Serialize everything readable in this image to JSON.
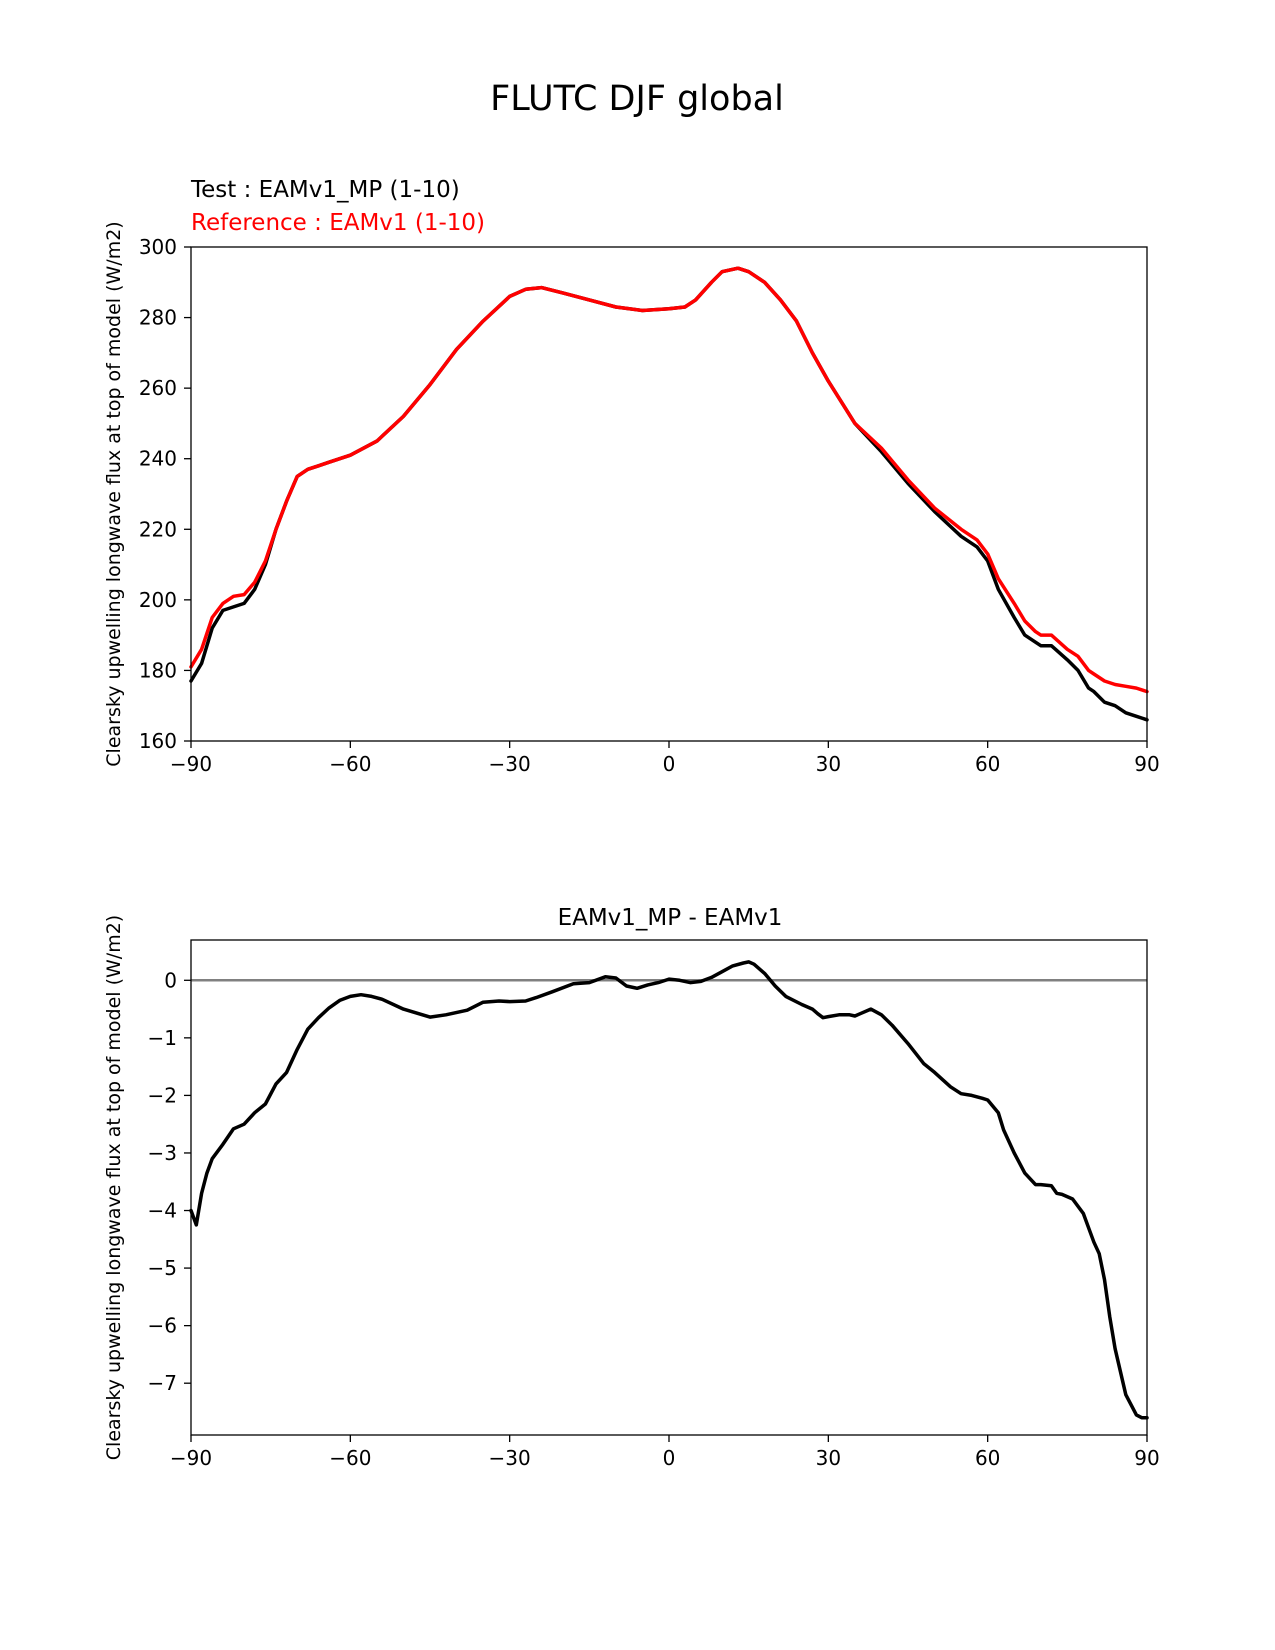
{
  "figure": {
    "title": "FLUTC DJF global"
  },
  "colors": {
    "test": "#000000",
    "reference": "#ff0000",
    "zero_line": "#808080"
  },
  "chart_data": [
    {
      "type": "line",
      "id": "top",
      "test_label": "Test : EAMv1_MP (1-10)",
      "reference_label": "Reference : EAMv1 (1-10)",
      "title": "",
      "xlabel": "",
      "ylabel": "Clearsky upwelling longwave flux at top of model (W/m2)",
      "xlim": [
        -90,
        90
      ],
      "ylim": [
        160,
        300
      ],
      "xticks": [
        -90,
        -60,
        -30,
        0,
        30,
        60,
        90
      ],
      "xtick_labels": [
        "−90",
        "−60",
        "−30",
        "0",
        "30",
        "60",
        "90"
      ],
      "yticks": [
        160,
        180,
        200,
        220,
        240,
        260,
        280,
        300
      ],
      "ytick_labels": [
        "160",
        "180",
        "200",
        "220",
        "240",
        "260",
        "280",
        "300"
      ],
      "series": [
        {
          "name": "Test : EAMv1_MP (1-10)",
          "color": "#000000",
          "x": [
            -90,
            -88,
            -86,
            -84,
            -82,
            -80,
            -78,
            -76,
            -74,
            -72,
            -70,
            -68,
            -66,
            -64,
            -62,
            -60,
            -55,
            -50,
            -45,
            -40,
            -35,
            -30,
            -27,
            -24,
            -20,
            -15,
            -10,
            -5,
            0,
            3,
            5,
            8,
            10,
            13,
            15,
            18,
            21,
            24,
            27,
            30,
            35,
            40,
            45,
            50,
            55,
            58,
            60,
            62,
            65,
            67,
            69,
            70,
            72,
            75,
            77,
            79,
            80,
            82,
            84,
            86,
            88,
            90
          ],
          "y": [
            177,
            182,
            192,
            197,
            198,
            199,
            203,
            210,
            220,
            228,
            235,
            237,
            238,
            239,
            240,
            241,
            245,
            252,
            261,
            271,
            279,
            286,
            288,
            288.5,
            287,
            285,
            283,
            282,
            282.5,
            283,
            285,
            290,
            293,
            294,
            293,
            290,
            285,
            279,
            270,
            262,
            250,
            242,
            233,
            225,
            218,
            215,
            211,
            203,
            195,
            190,
            188,
            187,
            187,
            183,
            180,
            175,
            174,
            171,
            170,
            168,
            167,
            166
          ]
        },
        {
          "name": "Reference : EAMv1 (1-10)",
          "color": "#ff0000",
          "x": [
            -90,
            -88,
            -86,
            -84,
            -82,
            -80,
            -78,
            -76,
            -74,
            -72,
            -70,
            -68,
            -66,
            -64,
            -62,
            -60,
            -55,
            -50,
            -45,
            -40,
            -35,
            -30,
            -27,
            -24,
            -20,
            -15,
            -10,
            -5,
            0,
            3,
            5,
            8,
            10,
            13,
            15,
            18,
            21,
            24,
            27,
            30,
            35,
            40,
            45,
            50,
            55,
            58,
            60,
            62,
            65,
            67,
            69,
            70,
            72,
            75,
            77,
            79,
            80,
            82,
            84,
            86,
            88,
            90
          ],
          "y": [
            181,
            186,
            195,
            199,
            201,
            201.5,
            205,
            211,
            220,
            228,
            235,
            237,
            238,
            239,
            240,
            241,
            245,
            252,
            261,
            271,
            279,
            286,
            288,
            288.5,
            287,
            285,
            283,
            282,
            282.5,
            283,
            285,
            290,
            293,
            294,
            293,
            290,
            285,
            279,
            270,
            262,
            250,
            243,
            234,
            226,
            220,
            217,
            213,
            206,
            199,
            194,
            191,
            190,
            190,
            186,
            184,
            180,
            179,
            177,
            176,
            175.5,
            175,
            174
          ]
        }
      ]
    },
    {
      "type": "line",
      "id": "bottom",
      "title": "EAMv1_MP - EAMv1",
      "xlabel": "",
      "ylabel": "Clearsky upwelling longwave flux at top of model (W/m2)",
      "xlim": [
        -90,
        90
      ],
      "ylim": [
        -7.9,
        0.7
      ],
      "xticks": [
        -90,
        -60,
        -30,
        0,
        30,
        60,
        90
      ],
      "xtick_labels": [
        "−90",
        "−60",
        "−30",
        "0",
        "30",
        "60",
        "90"
      ],
      "yticks": [
        -7,
        -6,
        -5,
        -4,
        -3,
        -2,
        -1,
        0
      ],
      "ytick_labels": [
        "−7",
        "−6",
        "−5",
        "−4",
        "−3",
        "−2",
        "−1",
        "0"
      ],
      "zero_line": 0,
      "series": [
        {
          "name": "EAMv1_MP - EAMv1",
          "color": "#000000",
          "x": [
            -90,
            -89,
            -88,
            -87,
            -86,
            -84,
            -82,
            -80,
            -78,
            -76,
            -74,
            -72,
            -70,
            -68,
            -66,
            -64,
            -62,
            -60,
            -58,
            -56,
            -54,
            -50,
            -45,
            -42,
            -38,
            -35,
            -32,
            -30,
            -27,
            -25,
            -22,
            -18,
            -15,
            -12,
            -10,
            -8,
            -6,
            -4,
            -2,
            0,
            2,
            4,
            6,
            8,
            10,
            12,
            14,
            15,
            16,
            18,
            20,
            22,
            25,
            27,
            28,
            29,
            30,
            32,
            34,
            35,
            36,
            38,
            40,
            42,
            45,
            48,
            50,
            53,
            55,
            57,
            59,
            60,
            62,
            63,
            65,
            67,
            69,
            70,
            72,
            73,
            74,
            76,
            78,
            79,
            80,
            81,
            82,
            83,
            84,
            86,
            88,
            89,
            90
          ],
          "y": [
            -4.0,
            -4.25,
            -3.7,
            -3.35,
            -3.1,
            -2.85,
            -2.58,
            -2.5,
            -2.3,
            -2.15,
            -1.8,
            -1.6,
            -1.2,
            -0.85,
            -0.65,
            -0.48,
            -0.35,
            -0.28,
            -0.25,
            -0.28,
            -0.33,
            -0.5,
            -0.64,
            -0.6,
            -0.52,
            -0.38,
            -0.36,
            -0.37,
            -0.36,
            -0.3,
            -0.2,
            -0.06,
            -0.04,
            0.06,
            0.04,
            -0.1,
            -0.14,
            -0.08,
            -0.04,
            0.02,
            0.0,
            -0.04,
            -0.02,
            0.05,
            0.15,
            0.25,
            0.3,
            0.32,
            0.28,
            0.12,
            -0.1,
            -0.28,
            -0.42,
            -0.5,
            -0.58,
            -0.65,
            -0.63,
            -0.6,
            -0.6,
            -0.62,
            -0.58,
            -0.5,
            -0.6,
            -0.78,
            -1.1,
            -1.45,
            -1.6,
            -1.85,
            -1.97,
            -2.0,
            -2.05,
            -2.08,
            -2.3,
            -2.6,
            -3.0,
            -3.35,
            -3.55,
            -3.55,
            -3.57,
            -3.7,
            -3.72,
            -3.8,
            -4.05,
            -4.3,
            -4.55,
            -4.75,
            -5.2,
            -5.85,
            -6.4,
            -7.2,
            -7.55,
            -7.6,
            -7.6
          ]
        }
      ]
    }
  ]
}
